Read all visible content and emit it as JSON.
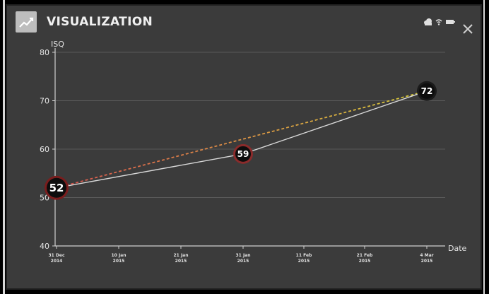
{
  "window": {
    "title": "VISUALIZATION"
  },
  "icons": {
    "app": "trend-line-icon",
    "status": [
      "cloud-icon",
      "wifi-icon",
      "battery-icon"
    ],
    "close": "close-icon"
  },
  "colors": {
    "background": "#3b3b3b",
    "grid": "#5a5a5a",
    "actual_line": "#d9d9d9",
    "trend_red": "#d9534f",
    "trend_yellow": "#d9cf3a",
    "point_fill": "#0d0d0d",
    "point_start_ring": "#7a1d1d",
    "point_mid_ring": "#8a2b2b"
  },
  "chart_data": {
    "type": "line",
    "ylabel": "ISQ",
    "xlabel": "Date",
    "ylim": [
      40,
      80
    ],
    "yticks": [
      40,
      50,
      60,
      70,
      80
    ],
    "xticks": [
      {
        "line1": "31 Dec",
        "line2": "2014"
      },
      {
        "line1": "10 Jan",
        "line2": "2015"
      },
      {
        "line1": "21 Jan",
        "line2": "2015"
      },
      {
        "line1": "31 Jan",
        "line2": "2015"
      },
      {
        "line1": "11 Feb",
        "line2": "2015"
      },
      {
        "line1": "21 Feb",
        "line2": "2015"
      },
      {
        "line1": "4 Mar",
        "line2": "2015"
      }
    ],
    "series": [
      {
        "points": [
          {
            "x": "2014-12-31",
            "y": 52,
            "label": "52"
          },
          {
            "x": "2015-01-31",
            "y": 59,
            "label": "59"
          },
          {
            "x": "2015-03-04",
            "y": 72,
            "label": "72"
          }
        ]
      }
    ],
    "trend": {
      "from": {
        "x": "2014-12-31",
        "y": 52
      },
      "to": {
        "x": "2015-03-04",
        "y": 72
      },
      "style": "dashed"
    }
  }
}
